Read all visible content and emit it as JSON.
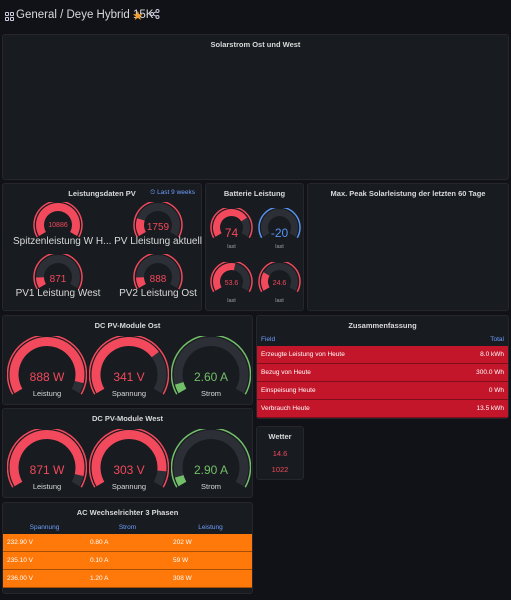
{
  "header": {
    "breadcrumb": "General  /  Deye Hybrid 15K",
    "colors": {
      "star": "#f0a030"
    }
  },
  "colors": {
    "gauge_red": "#f2495c",
    "gauge_green": "#73bf69",
    "gauge_blue": "#5794f2",
    "table_red": "#c4162a",
    "table_orange": "#ff780a"
  },
  "panels": {
    "solar": {
      "title": "Solarstrom Ost und West"
    },
    "pv": {
      "title": "Leistungsdaten PV",
      "time_range": "Last 9 weeks",
      "gauges": [
        {
          "value": "10886",
          "label": "Spitzenleistung W H...",
          "fraction": 1.0
        },
        {
          "value": "1759",
          "label": "PV Lleistung aktuell",
          "fraction": 0.2
        },
        {
          "value": "871",
          "label": "PV1 Leistung West",
          "fraction": 0.12
        },
        {
          "value": "888",
          "label": "PV2 Leistung Ost",
          "fraction": 0.12
        }
      ]
    },
    "battery": {
      "title": "Batterie Leistung",
      "gauges": [
        {
          "value": "74",
          "label": "last",
          "fraction": 0.74
        },
        {
          "value": "-20",
          "label": "last",
          "fraction": 0.0
        },
        {
          "value": "53.6",
          "label": "last",
          "fraction": 0.55
        },
        {
          "value": "24.6",
          "label": "last",
          "fraction": 0.25
        }
      ]
    },
    "maxpeak": {
      "title": "Max. Peak Solarleistung der letzten 60 Tage"
    },
    "dc_ost": {
      "title": "DC PV-Module Ost",
      "gauges": [
        {
          "value": "888 W",
          "label": "Leistung",
          "fraction": 0.93
        },
        {
          "value": "341 V",
          "label": "Spannung",
          "fraction": 0.72
        },
        {
          "value": "2.60 A",
          "label": "Strom",
          "fraction": 0.06
        }
      ]
    },
    "dc_west": {
      "title": "DC PV-Module West",
      "gauges": [
        {
          "value": "871 W",
          "label": "Leistung",
          "fraction": 0.93
        },
        {
          "value": "303 V",
          "label": "Spannung",
          "fraction": 0.9
        },
        {
          "value": "2.90 A",
          "label": "Strom",
          "fraction": 0.06
        }
      ]
    },
    "zusammenfassung": {
      "title": "Zusammenfassung",
      "columns": [
        "Field",
        "Total"
      ],
      "rows": [
        {
          "field": "Erzeugte Leistung von Heute",
          "total": "8.0 kWh"
        },
        {
          "field": "Bezug von Heute",
          "total": "300.0 Wh"
        },
        {
          "field": "Einspeisung Heute",
          "total": "0 Wh"
        },
        {
          "field": "Verbrauch Heute",
          "total": "13.5 kWh"
        }
      ]
    },
    "wetter": {
      "title": "Wetter",
      "values": [
        "14.6",
        "1022"
      ]
    },
    "ac": {
      "title": "AC Wechselrichter 3 Phasen",
      "columns": [
        "Spannung",
        "Strom",
        "Leistung"
      ],
      "rows": [
        [
          "232.90 V",
          "0.80 A",
          "202 W"
        ],
        [
          "235.10 V",
          "0.10 A",
          "59 W"
        ],
        [
          "236.00 V",
          "1.20 A",
          "308 W"
        ]
      ]
    }
  }
}
